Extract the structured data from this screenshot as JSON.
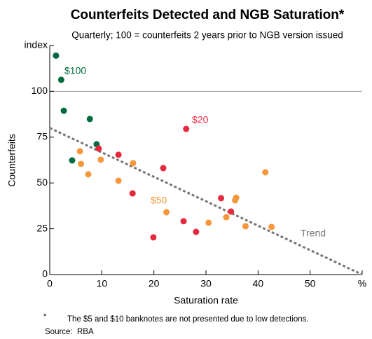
{
  "chart_data": {
    "type": "scatter",
    "title": "Counterfeits Detected and NGB Saturation*",
    "subtitle": "Quarterly; 100 = counterfeits 2 years prior to NGB version issued",
    "x_label": "Saturation rate",
    "y_label": "Counterfeits",
    "xlim": [
      0,
      60
    ],
    "xticks": [
      0,
      10,
      20,
      30,
      40,
      50,
      {
        "value": 60,
        "label": "%"
      }
    ],
    "ylim": [
      0,
      125
    ],
    "yticks": [
      0,
      25,
      50,
      75,
      100,
      {
        "value": 125,
        "label": "index"
      }
    ],
    "reference_line": 100,
    "series": [
      {
        "name": "$100",
        "color": "#006b3c",
        "x": [
          1.2,
          2.2,
          2.7,
          7.7,
          9.0,
          4.3
        ],
        "values": [
          119.5,
          106.3,
          89.4,
          84.9,
          71.1,
          62.3
        ]
      },
      {
        "name": "$20",
        "color": "#e8283c",
        "x": [
          26.2,
          9.4,
          13.2,
          21.8,
          15.9,
          32.9,
          34.8,
          25.7,
          28.1,
          19.9
        ],
        "values": [
          79.5,
          68.8,
          65.4,
          58.1,
          44.3,
          41.7,
          34.4,
          29.1,
          23.3,
          20.3
        ]
      },
      {
        "name": "$50",
        "color": "#f5973a",
        "x": [
          5.8,
          6.0,
          7.4,
          9.8,
          13.2,
          16.0,
          22.4,
          30.5,
          33.9,
          35.8,
          35.6,
          37.6,
          41.4,
          42.6
        ],
        "values": [
          67.3,
          60.4,
          54.7,
          62.7,
          51.2,
          60.8,
          34.0,
          28.3,
          31.3,
          42.0,
          40.5,
          26.4,
          55.8,
          26.0
        ]
      }
    ],
    "trend": {
      "name": "Trend",
      "color": "#777777",
      "x": [
        0,
        60
      ],
      "values": [
        80,
        0
      ]
    },
    "note": {
      "marker": "*",
      "text": "The $5 and $10 banknotes are not presented due to low detections."
    },
    "source": {
      "label": "Source:",
      "text": "RBA"
    }
  }
}
